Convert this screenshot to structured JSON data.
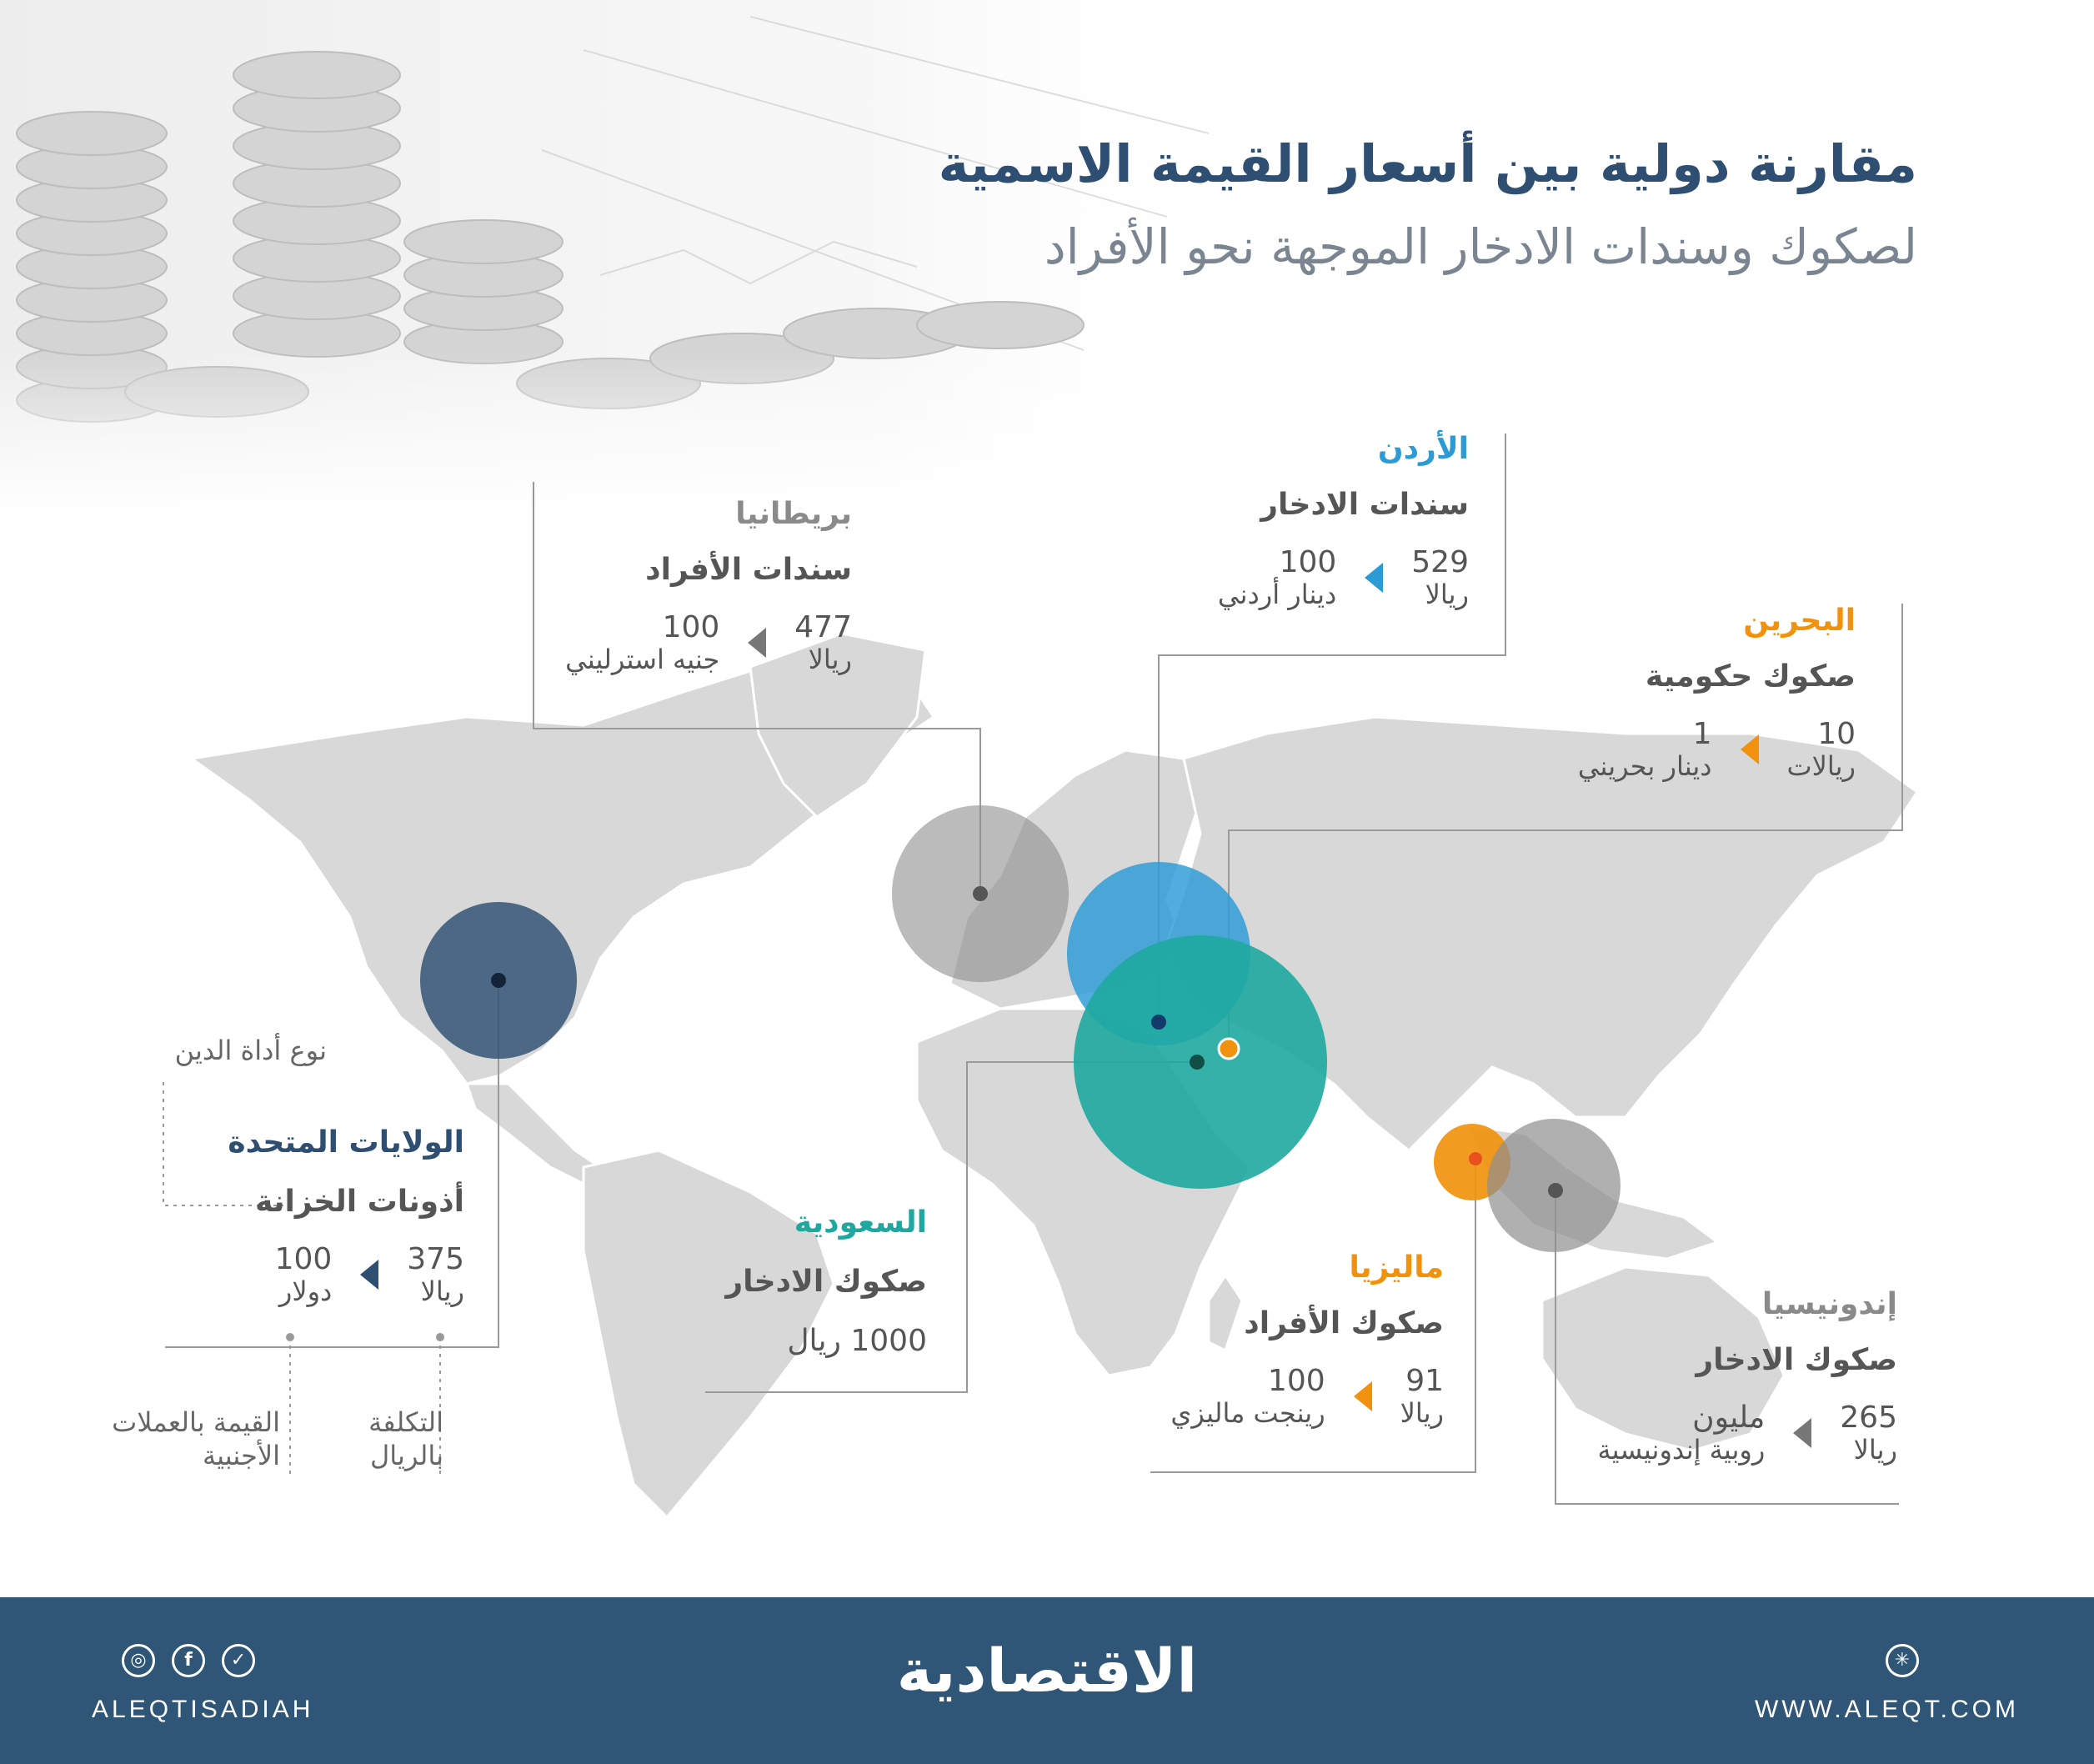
{
  "header": {
    "title": "مقارنة دولية بين أسعار القيمة الاسمية",
    "subtitle": "لصكوك وسندات الادخار الموجهة نحو الأفراد"
  },
  "colors": {
    "usa": "#2e4f72",
    "uk": "#8e8e8e",
    "jordan": "#2b9bd6",
    "bahrain": "#f0920e",
    "saudi": "#1ea8a0",
    "malaysia": "#f0920e",
    "indonesia": "#8e8e8e",
    "map_land": "#d8d8d8",
    "footer_bg": "#2f5677"
  },
  "countries": {
    "usa": {
      "name": "الولايات المتحدة",
      "instrument": "أذونات الخزانة",
      "riyal_value": "375",
      "riyal_unit": "ريالا",
      "foreign_value": "100",
      "foreign_unit": "دولار"
    },
    "uk": {
      "name": "بريطانيا",
      "instrument": "سندات الأفراد",
      "riyal_value": "477",
      "riyal_unit": "ريالا",
      "foreign_value": "100",
      "foreign_unit": "جنيه استرليني"
    },
    "jordan": {
      "name": "الأردن",
      "instrument": "سندات الادخار",
      "riyal_value": "529",
      "riyal_unit": "ريالا",
      "foreign_value": "100",
      "foreign_unit": "دينار أردني"
    },
    "bahrain": {
      "name": "البحرين",
      "instrument": "صكوك حكومية",
      "riyal_value": "10",
      "riyal_unit": "ريالات",
      "foreign_value": "1",
      "foreign_unit": "دينار بحريني"
    },
    "saudi": {
      "name": "السعودية",
      "instrument": "صكوك الادخار",
      "value_text": "1000 ريال"
    },
    "malaysia": {
      "name": "ماليزيا",
      "instrument": "صكوك الأفراد",
      "riyal_value": "91",
      "riyal_unit": "ريالا",
      "foreign_value": "100",
      "foreign_unit": "رينجت ماليزي"
    },
    "indonesia": {
      "name": "إندونيسيا",
      "instrument": "صكوك الادخار",
      "riyal_value": "265",
      "riyal_unit": "ريالا",
      "foreign_value": "مليون",
      "foreign_unit": "روبية إندونيسية"
    }
  },
  "legend": {
    "debt_type": "نوع أداة الدين",
    "riyal_cost_line1": "التكلفة",
    "riyal_cost_line2": "بالريال",
    "foreign_value_line1": "القيمة بالعملات",
    "foreign_value_line2": "الأجنبية"
  },
  "footer": {
    "brand": "الاقتصادية",
    "handle": "ALEQTISADIAH",
    "website": "WWW.ALEQT.COM",
    "icons": [
      "instagram-icon",
      "facebook-icon",
      "twitter-icon",
      "web-icon"
    ]
  }
}
